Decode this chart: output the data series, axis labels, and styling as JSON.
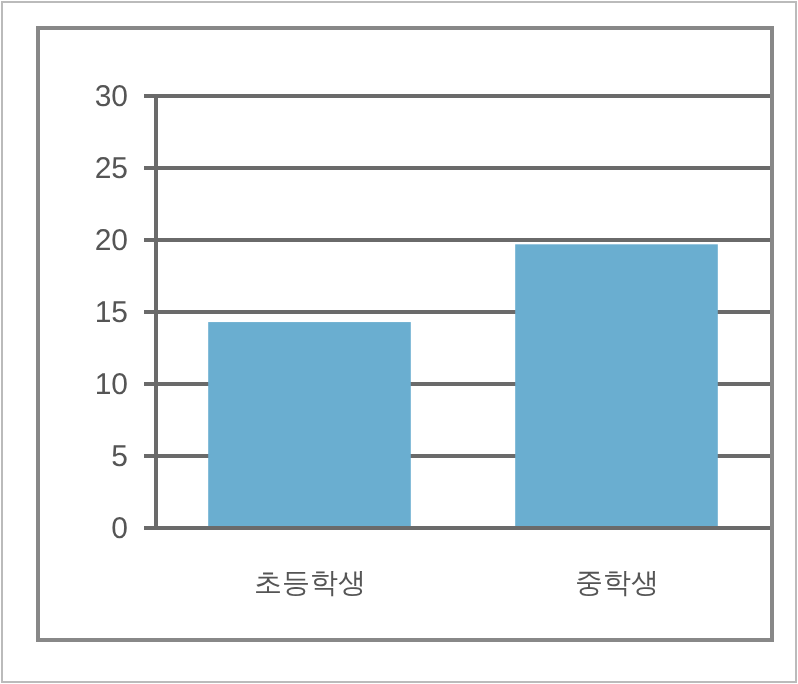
{
  "chart_data": {
    "type": "bar",
    "categories": [
      "초등학생",
      "중학생"
    ],
    "values": [
      14.3,
      19.7
    ],
    "color": "#6aaed0",
    "ylim": [
      0,
      30
    ],
    "yticks": [
      0,
      5,
      10,
      15,
      20,
      25,
      30
    ],
    "grid": "y"
  }
}
